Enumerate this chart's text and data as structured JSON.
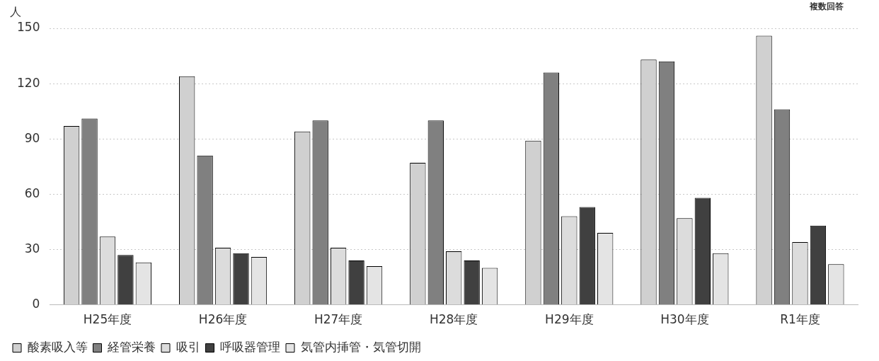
{
  "chart_data": {
    "type": "bar",
    "ylabel": "人",
    "annotations": [
      "複数回答"
    ],
    "categories": [
      "H25年度",
      "H26年度",
      "H27年度",
      "H28年度",
      "H29年度",
      "H30年度",
      "R1年度"
    ],
    "series": [
      {
        "name": "酸素吸入等",
        "color": "#d0d0d0",
        "values": [
          97,
          124,
          94,
          77,
          89,
          133,
          146
        ]
      },
      {
        "name": "経管栄養",
        "color": "#808080",
        "values": [
          101,
          81,
          100,
          100,
          126,
          132,
          106
        ]
      },
      {
        "name": "吸引",
        "color": "#dcdcdc",
        "values": [
          37,
          31,
          31,
          29,
          48,
          47,
          34
        ]
      },
      {
        "name": "呼吸器管理",
        "color": "#404040",
        "values": [
          27,
          28,
          24,
          24,
          53,
          58,
          43
        ]
      },
      {
        "name": "気管内挿管・気管切開",
        "color": "#e4e4e4",
        "values": [
          23,
          26,
          21,
          20,
          39,
          28,
          22
        ]
      }
    ],
    "ylim": [
      0,
      150
    ],
    "yticks": [
      0,
      30,
      60,
      90,
      120,
      150
    ],
    "grid": "y",
    "legend": "bottom"
  }
}
